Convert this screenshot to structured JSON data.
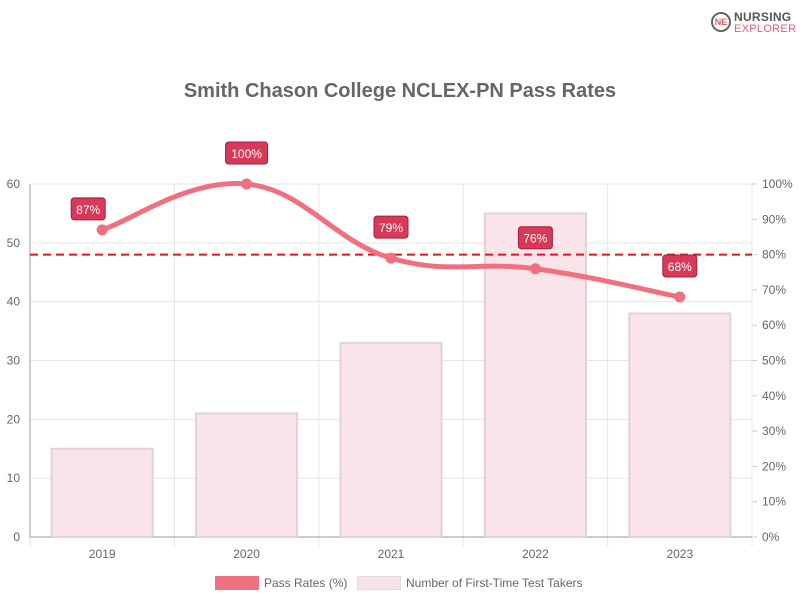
{
  "logo": {
    "line1": "NURSING",
    "line2": "EXPLORER",
    "mark": "NE"
  },
  "chart_data": {
    "type": "bar+line",
    "title": "Smith Chason College NCLEX-PN Pass Rates",
    "categories": [
      "2019",
      "2020",
      "2021",
      "2022",
      "2023"
    ],
    "series": [
      {
        "name": "Pass Rates (%)",
        "type": "line",
        "axis": "right",
        "values": [
          87,
          100,
          79,
          76,
          68
        ],
        "labels": [
          "87%",
          "100%",
          "79%",
          "76%",
          "68%"
        ],
        "color": "#f07080"
      },
      {
        "name": "Number of First-Time Test Takers",
        "type": "bar",
        "axis": "left",
        "values": [
          15,
          21,
          33,
          55,
          38
        ],
        "color": "#f9e4ea"
      }
    ],
    "left_axis": {
      "min": 0,
      "max": 60,
      "ticks": [
        "0",
        "10",
        "20",
        "30",
        "40",
        "50",
        "60"
      ]
    },
    "right_axis": {
      "min": 0,
      "max": 100,
      "ticks": [
        "0%",
        "10%",
        "20%",
        "30%",
        "40%",
        "50%",
        "60%",
        "70%",
        "80%",
        "90%",
        "100%"
      ]
    },
    "reference_line": {
      "value": 80,
      "axis": "right",
      "style": "dashed",
      "color": "#e8101e"
    },
    "grid": true,
    "legend": "bottom"
  }
}
